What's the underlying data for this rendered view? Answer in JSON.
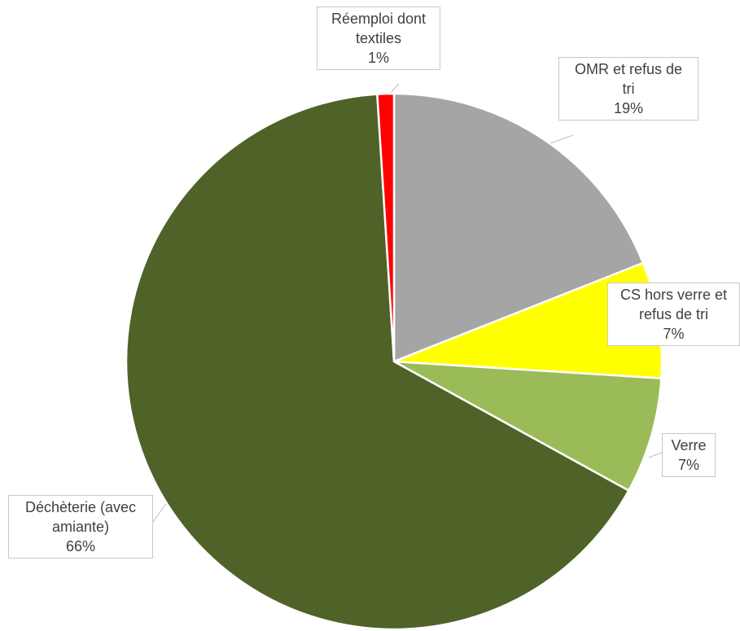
{
  "chart_data": {
    "type": "pie",
    "title": "",
    "slices": [
      {
        "label": "OMR et refus de tri",
        "label_lines": [
          "OMR et refus de",
          "tri"
        ],
        "value": 19,
        "value_label": "19%",
        "color": "#a5a5a5"
      },
      {
        "label": "CS hors verre et refus de tri",
        "label_lines": [
          "CS hors verre et",
          "refus de tri"
        ],
        "value": 7,
        "value_label": "7%",
        "color": "#ffff00"
      },
      {
        "label": "Verre",
        "label_lines": [
          "Verre"
        ],
        "value": 7,
        "value_label": "7%",
        "color": "#9bbb59"
      },
      {
        "label": "Déchèterie (avec amiante)",
        "label_lines": [
          "Déchèterie (avec",
          "amiante)"
        ],
        "value": 66,
        "value_label": "66%",
        "color": "#4f6228"
      },
      {
        "label": "Réemploi dont textiles",
        "label_lines": [
          "Réemploi dont",
          "textiles"
        ],
        "value": 1,
        "value_label": "1%",
        "color": "#ff0000"
      }
    ],
    "start_angle_deg": 0,
    "direction": "clockwise",
    "legend": "none",
    "data_labels": "callout"
  }
}
